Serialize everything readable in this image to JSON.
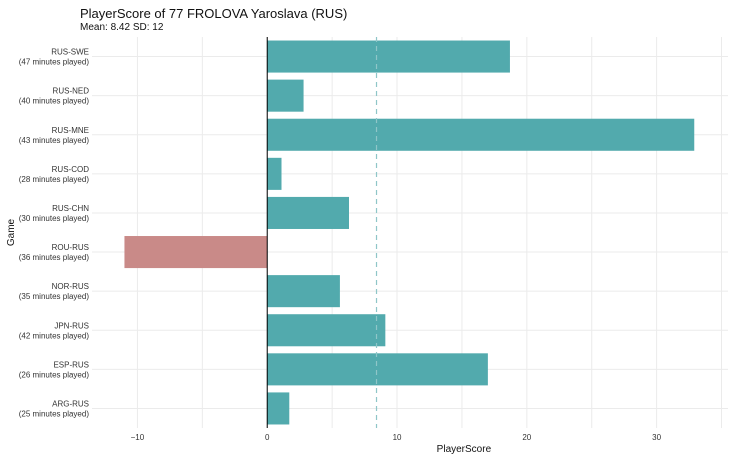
{
  "chart_data": {
    "type": "bar",
    "orientation": "horizontal",
    "title": "PlayerScore of 77 FROLOVA Yaroslava (RUS)",
    "subtitle": "Mean: 8.42 SD: 12",
    "xlabel": "PlayerScore",
    "ylabel": "Game",
    "xlim": [
      -13.5,
      35.5
    ],
    "x_ticks": [
      -10,
      0,
      10,
      20,
      30
    ],
    "grid": true,
    "legend": "none",
    "mean": 8.42,
    "categories": [
      {
        "game": "RUS-SWE",
        "minutes": "(47 minutes played)"
      },
      {
        "game": "RUS-NED",
        "minutes": "(40 minutes played)"
      },
      {
        "game": "RUS-MNE",
        "minutes": "(43 minutes played)"
      },
      {
        "game": "RUS-COD",
        "minutes": "(28 minutes played)"
      },
      {
        "game": "RUS-CHN",
        "minutes": "(30 minutes played)"
      },
      {
        "game": "ROU-RUS",
        "minutes": "(36 minutes played)"
      },
      {
        "game": "NOR-RUS",
        "minutes": "(35 minutes played)"
      },
      {
        "game": "JPN-RUS",
        "minutes": "(42 minutes played)"
      },
      {
        "game": "ESP-RUS",
        "minutes": "(26 minutes played)"
      },
      {
        "game": "ARG-RUS",
        "minutes": "(25 minutes played)"
      }
    ],
    "values": [
      18.7,
      2.8,
      32.9,
      1.1,
      6.3,
      -11.0,
      5.6,
      9.1,
      17.0,
      1.7
    ],
    "colors": {
      "positive": "#52aaad",
      "negative": "#c98a88",
      "mean_line": "#8fc6c8",
      "grid": "#ebebeb",
      "zero_line": "#000000",
      "text": "#333333"
    }
  }
}
